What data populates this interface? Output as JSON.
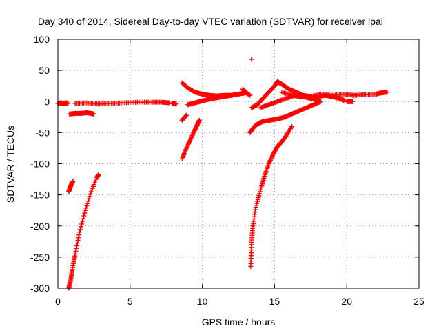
{
  "chart_data": {
    "type": "scatter",
    "title": "Day 340 of 2014, Sidereal Day-to-day VTEC variation (SDTVAR) for receiver lpal",
    "xlabel": "GPS time / hours",
    "ylabel": "SDTVAR / TECUs",
    "xlim": [
      0,
      25
    ],
    "ylim": [
      -300,
      100
    ],
    "xticks": [
      0,
      5,
      10,
      15,
      20,
      25
    ],
    "yticks": [
      -300,
      -250,
      -200,
      -150,
      -100,
      -50,
      0,
      50,
      100
    ],
    "grid": true,
    "marker": "plus",
    "color": "#ff0000",
    "series": [
      {
        "values": [
          [
            0.0,
            -3
          ],
          [
            0.2,
            -2
          ],
          [
            0.4,
            -3
          ],
          [
            0.6,
            -2
          ],
          [
            0.7,
            -3
          ]
        ]
      },
      {
        "values": [
          [
            0.8,
            -20
          ],
          [
            1.2,
            -19
          ],
          [
            1.6,
            -19
          ],
          [
            2.0,
            -18
          ],
          [
            2.3,
            -19
          ],
          [
            2.5,
            -20
          ]
        ]
      },
      {
        "values": [
          [
            1.2,
            -3
          ],
          [
            2.0,
            -2
          ],
          [
            2.8,
            -4
          ],
          [
            3.6,
            -3
          ],
          [
            4.5,
            -2
          ],
          [
            5.5,
            -1
          ],
          [
            6.5,
            -1
          ],
          [
            7.2,
            -1
          ],
          [
            7.7,
            -2
          ]
        ]
      },
      {
        "values": [
          [
            7.9,
            -3
          ],
          [
            8.2,
            -4
          ]
        ]
      },
      {
        "values": [
          [
            0.75,
            -145
          ],
          [
            0.85,
            -138
          ],
          [
            0.95,
            -132
          ],
          [
            1.05,
            -128
          ]
        ]
      },
      {
        "values": [
          [
            0.75,
            -300
          ],
          [
            0.9,
            -285
          ],
          [
            1.0,
            -270
          ],
          [
            1.2,
            -245
          ],
          [
            1.5,
            -210
          ],
          [
            1.9,
            -175
          ],
          [
            2.3,
            -145
          ],
          [
            2.7,
            -122
          ],
          [
            2.8,
            -118
          ]
        ]
      },
      {
        "values": [
          [
            8.6,
            -92
          ],
          [
            8.9,
            -75
          ],
          [
            9.2,
            -60
          ],
          [
            9.5,
            -45
          ],
          [
            9.7,
            -35
          ],
          [
            9.8,
            -30
          ]
        ]
      },
      {
        "values": [
          [
            8.6,
            -30
          ],
          [
            8.9,
            -22
          ]
        ]
      },
      {
        "values": [
          [
            8.6,
            30
          ],
          [
            9.0,
            22
          ],
          [
            9.5,
            15
          ],
          [
            10.0,
            12
          ],
          [
            10.5,
            10
          ],
          [
            11.0,
            9
          ],
          [
            11.5,
            10
          ],
          [
            12.0,
            10
          ],
          [
            12.5,
            12
          ],
          [
            13.0,
            14
          ]
        ]
      },
      {
        "values": [
          [
            9.0,
            -5
          ],
          [
            9.5,
            -2
          ],
          [
            10.0,
            1
          ],
          [
            10.5,
            4
          ],
          [
            11.0,
            6
          ],
          [
            11.5,
            8
          ],
          [
            12.0,
            10
          ],
          [
            12.5,
            12
          ]
        ]
      },
      {
        "values": [
          [
            12.8,
            20
          ],
          [
            13.0,
            15
          ],
          [
            13.3,
            10
          ]
        ]
      },
      {
        "values": [
          [
            13.4,
            68
          ]
        ]
      },
      {
        "values": [
          [
            13.35,
            -265
          ],
          [
            13.4,
            -230
          ],
          [
            13.5,
            -200
          ],
          [
            13.7,
            -170
          ],
          [
            14.0,
            -145
          ],
          [
            14.3,
            -120
          ],
          [
            14.6,
            -100
          ],
          [
            14.9,
            -85
          ],
          [
            15.2,
            -72
          ],
          [
            15.5,
            -65
          ],
          [
            15.8,
            -55
          ],
          [
            16.2,
            -40
          ]
        ]
      },
      {
        "values": [
          [
            13.3,
            -50
          ],
          [
            13.6,
            -40
          ],
          [
            13.9,
            -35
          ],
          [
            14.2,
            -32
          ],
          [
            14.7,
            -30
          ],
          [
            15.2,
            -28
          ],
          [
            15.7,
            -25
          ],
          [
            16.2,
            -20
          ],
          [
            16.7,
            -15
          ],
          [
            17.2,
            -10
          ],
          [
            17.7,
            -5
          ],
          [
            18.2,
            0
          ]
        ]
      },
      {
        "values": [
          [
            13.4,
            -10
          ],
          [
            13.8,
            -5
          ],
          [
            14.2,
            5
          ],
          [
            14.6,
            15
          ],
          [
            15.0,
            25
          ],
          [
            15.2,
            32
          ],
          [
            15.5,
            28
          ],
          [
            16.0,
            20
          ],
          [
            16.5,
            15
          ],
          [
            17.0,
            10
          ],
          [
            17.5,
            8
          ]
        ]
      },
      {
        "values": [
          [
            14.0,
            -10
          ],
          [
            14.6,
            -5
          ],
          [
            15.2,
            0
          ],
          [
            15.8,
            5
          ],
          [
            16.4,
            10
          ],
          [
            17.0,
            8
          ],
          [
            17.5,
            5
          ],
          [
            18.0,
            3
          ]
        ]
      },
      {
        "values": [
          [
            15.5,
            15
          ],
          [
            16.2,
            10
          ],
          [
            16.8,
            8
          ],
          [
            17.5,
            8
          ],
          [
            18.2,
            12
          ],
          [
            19.0,
            10
          ],
          [
            19.8,
            12
          ],
          [
            20.5,
            10
          ],
          [
            21.2,
            11
          ],
          [
            22.0,
            12
          ],
          [
            22.4,
            14
          ],
          [
            22.8,
            15
          ]
        ]
      },
      {
        "values": [
          [
            17.5,
            5
          ],
          [
            18.0,
            8
          ],
          [
            18.5,
            10
          ],
          [
            19.0,
            8
          ],
          [
            19.5,
            5
          ],
          [
            19.8,
            2
          ]
        ]
      },
      {
        "values": [
          [
            20.0,
            0
          ],
          [
            20.4,
            0
          ]
        ]
      }
    ]
  }
}
